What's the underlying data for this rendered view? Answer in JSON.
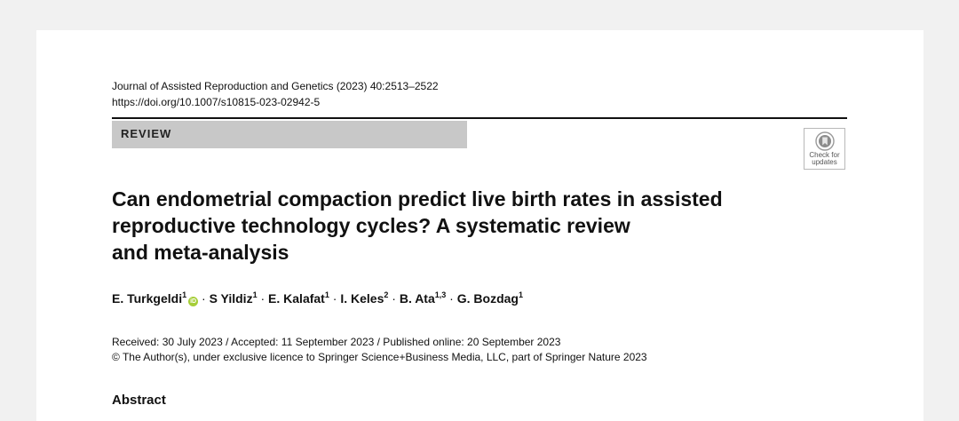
{
  "journal": {
    "citation": "Journal of Assisted Reproduction and Genetics (2023) 40:2513–2522",
    "doi": "https://doi.org/10.1007/s10815-023-02942-5"
  },
  "article_type": "REVIEW",
  "check_updates": {
    "icon": "bookmark-icon",
    "line1": "Check for",
    "line2": "updates"
  },
  "title_lines": [
    "Can endometrial compaction predict live birth rates in assisted",
    "reproductive technology cycles? A systematic review",
    "and meta-analysis"
  ],
  "authors": [
    {
      "name": "E. Turkgeldi",
      "aff": "1",
      "orcid": true
    },
    {
      "name": "S Yildiz",
      "aff": "1"
    },
    {
      "name": "E. Kalafat",
      "aff": "1"
    },
    {
      "name": "I. Keles",
      "aff": "2"
    },
    {
      "name": "B. Ata",
      "aff": "1,3"
    },
    {
      "name": "G. Bozdag",
      "aff": "1"
    }
  ],
  "orcid_glyph": "iD",
  "author_separator": "·",
  "dates": "Received: 30 July 2023 / Accepted: 11 September 2023 / Published online: 20 September 2023",
  "license": "© The Author(s), under exclusive licence to Springer Science+Business Media, LLC, part of Springer Nature 2023",
  "abstract_heading": "Abstract",
  "colors": {
    "page_background": "#f1f1f1",
    "review_bar": "#c8c8c8",
    "orcid": "#a6ce39"
  }
}
